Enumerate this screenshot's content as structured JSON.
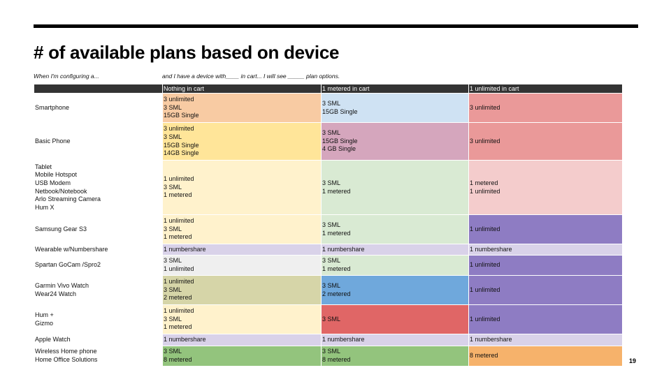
{
  "page": {
    "title": "# of available plans based on device",
    "subtitle_left": "When I'm configuring a...",
    "subtitle_right": "and I have a device with____ in cart... I will see _____ plan options.",
    "page_number": "19"
  },
  "table": {
    "headers": [
      "",
      "Nothing in cart",
      "1 metered in cart",
      "1 unlimited in cart"
    ],
    "rows": [
      {
        "device": [
          "Smartphone"
        ],
        "cells": [
          {
            "lines": [
              "3 unlimited",
              "3 SML",
              "15GB Single"
            ],
            "color": "#f8cba3"
          },
          {
            "lines": [
              "3 SML",
              "15GB Single"
            ],
            "color": "#cfe2f3"
          },
          {
            "lines": [
              "3 unlimited"
            ],
            "color": "#ea9999"
          }
        ]
      },
      {
        "device": [
          "Basic Phone"
        ],
        "cells": [
          {
            "lines": [
              "3 unlimited",
              "3 SML",
              "15GB Single",
              "14GB Single"
            ],
            "color": "#ffe599"
          },
          {
            "lines": [
              "3 SML",
              "15GB Single",
              "4 GB Single"
            ],
            "color": "#d5a6bd"
          },
          {
            "lines": [
              "3 unlimited"
            ],
            "color": "#ea9999"
          }
        ]
      },
      {
        "device": [
          "Tablet",
          "Mobile Hotspot",
          "USB Modem",
          "Netbook/Notebook",
          "Arlo Streaming Camera",
          "Hum X"
        ],
        "cells": [
          {
            "lines": [
              "1 unlimited",
              "3 SML",
              "1 metered"
            ],
            "color": "#fff2cc"
          },
          {
            "lines": [
              "3 SML",
              "1 metered"
            ],
            "color": "#d9ead3"
          },
          {
            "lines": [
              "1 metered",
              "1 unlimited"
            ],
            "color": "#f4cccc"
          }
        ]
      },
      {
        "device": [
          "Samsung Gear S3"
        ],
        "cells": [
          {
            "lines": [
              "1 unlimited",
              "3 SML",
              "1 metered"
            ],
            "color": "#fff2cc"
          },
          {
            "lines": [
              "3 SML",
              "1 metered"
            ],
            "color": "#d9ead3"
          },
          {
            "lines": [
              "1 unlimited"
            ],
            "color": "#8e7cc3"
          }
        ]
      },
      {
        "device": [
          "Wearable w/Numbershare"
        ],
        "cells": [
          {
            "lines": [
              "1 numbershare"
            ],
            "color": "#d9d2e9"
          },
          {
            "lines": [
              "1 numbershare"
            ],
            "color": "#d9d2e9"
          },
          {
            "lines": [
              "1 numbershare"
            ],
            "color": "#d9d2e9"
          }
        ]
      },
      {
        "device": [
          "Spartan GoCam /Spro2"
        ],
        "cells": [
          {
            "lines": [
              "3 SML",
              "1 unlimited"
            ],
            "color": "#efefef"
          },
          {
            "lines": [
              "3 SML",
              "1 metered"
            ],
            "color": "#d9ead3"
          },
          {
            "lines": [
              "1 unlimited"
            ],
            "color": "#8e7cc3"
          }
        ]
      },
      {
        "device": [
          "Garmin Vivo Watch",
          "Wear24 Watch"
        ],
        "cells": [
          {
            "lines": [
              "1 unlimited",
              "3 SML",
              "2 metered"
            ],
            "color": "#d6d5a8"
          },
          {
            "lines": [
              "3 SML",
              "2 metered"
            ],
            "color": "#6fa8dc"
          },
          {
            "lines": [
              "1 unlimited"
            ],
            "color": "#8e7cc3"
          }
        ]
      },
      {
        "device": [
          "Hum +",
          "Gizmo"
        ],
        "cells": [
          {
            "lines": [
              "1 unlimited",
              "3 SML",
              "1 metered"
            ],
            "color": "#fff2cc"
          },
          {
            "lines": [
              "3 SML"
            ],
            "color": "#e06666"
          },
          {
            "lines": [
              "1 unlimited"
            ],
            "color": "#8e7cc3"
          }
        ]
      },
      {
        "device": [
          "Apple Watch"
        ],
        "cells": [
          {
            "lines": [
              "1 numbershare"
            ],
            "color": "#d9d2e9"
          },
          {
            "lines": [
              "1 numbershare"
            ],
            "color": "#d9d2e9"
          },
          {
            "lines": [
              "1 numbershare"
            ],
            "color": "#d9d2e9"
          }
        ]
      },
      {
        "device": [
          "Wireless Home phone",
          "Home Office Solutions"
        ],
        "cells": [
          {
            "lines": [
              "3 SML",
              "8 metered"
            ],
            "color": "#93c47d"
          },
          {
            "lines": [
              "3 SML",
              "8 metered"
            ],
            "color": "#93c47d"
          },
          {
            "lines": [
              "8 metered"
            ],
            "color": "#f6b26b"
          }
        ]
      }
    ]
  }
}
